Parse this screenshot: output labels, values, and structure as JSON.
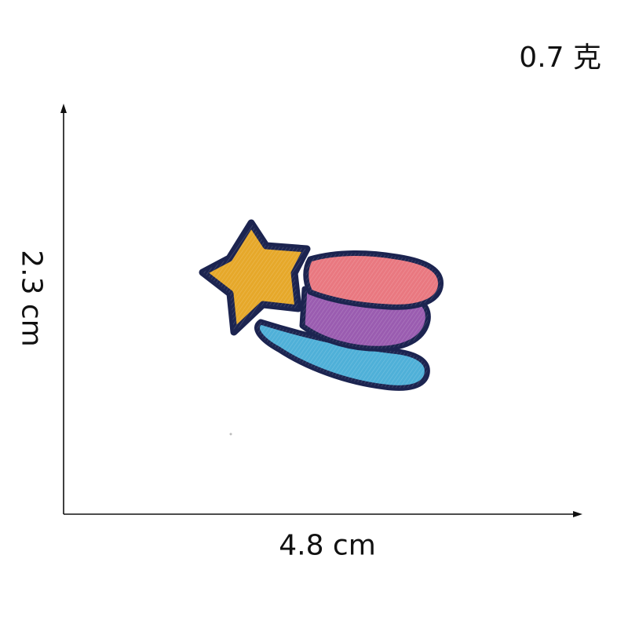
{
  "labels": {
    "weight": "0.7 克",
    "height": "2.3 cm",
    "width": "4.8 cm"
  },
  "colors": {
    "background": "#ffffff",
    "text": "#111111",
    "outline": "#1c2450",
    "star": "#e6a82a",
    "pink": "#e97880",
    "purple": "#9a5cb0",
    "blue": "#4fb0d8"
  },
  "product": {
    "icon": "shooting-star-embroidered-patch"
  }
}
